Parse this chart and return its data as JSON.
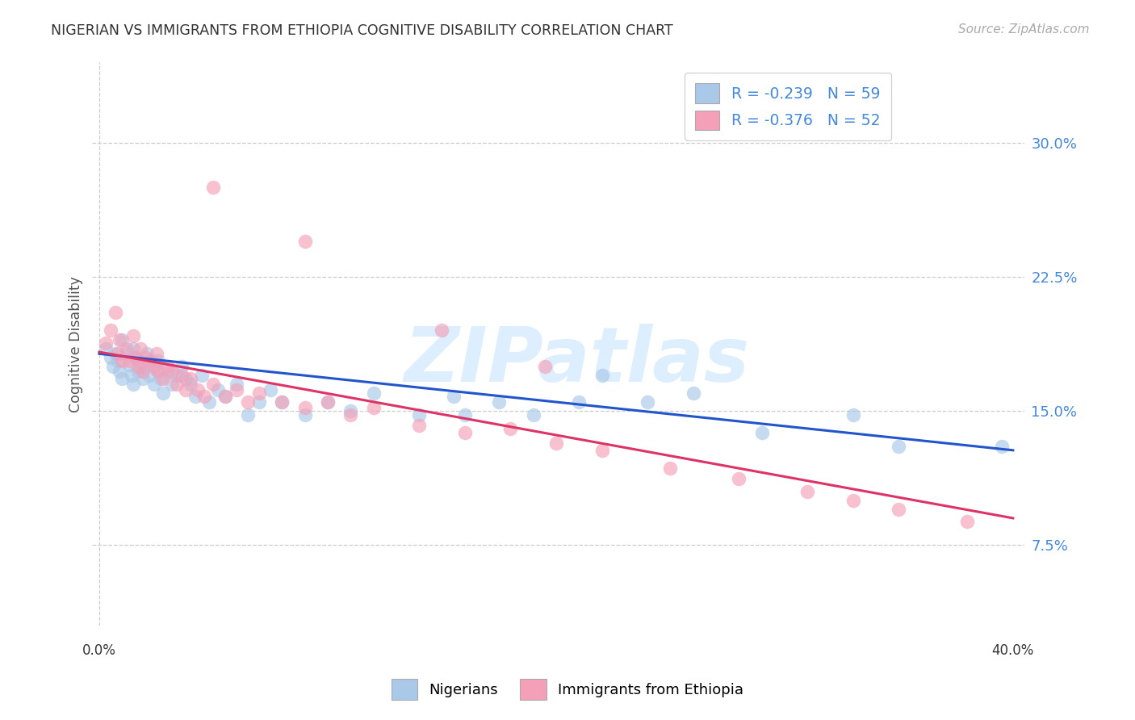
{
  "title": "NIGERIAN VS IMMIGRANTS FROM ETHIOPIA COGNITIVE DISABILITY CORRELATION CHART",
  "source": "Source: ZipAtlas.com",
  "ylabel": "Cognitive Disability",
  "ytick_vals": [
    0.075,
    0.15,
    0.225,
    0.3
  ],
  "ytick_labels": [
    "7.5%",
    "15.0%",
    "22.5%",
    "30.0%"
  ],
  "xlim": [
    -0.003,
    0.405
  ],
  "ylim": [
    0.03,
    0.345
  ],
  "blue_scatter_color": "#aac8e8",
  "pink_scatter_color": "#f4a0b8",
  "blue_line_color": "#2255cc",
  "pink_line_color": "#dd3366",
  "legend_label1": "Nigerians",
  "legend_label2": "Immigrants from Ethiopia",
  "r_nig": -0.239,
  "n_nig": 59,
  "r_eth": -0.376,
  "n_eth": 52,
  "grid_color": "#cccccc",
  "title_fontsize": 12.5,
  "tick_fontsize": 13,
  "blue_trendline_start_y": 0.182,
  "blue_trendline_end_y": 0.128,
  "pink_trendline_start_y": 0.183,
  "pink_trendline_end_y": 0.09,
  "watermark_text": "ZIPatlas",
  "nigerian_x": [
    0.003,
    0.005,
    0.006,
    0.007,
    0.008,
    0.009,
    0.01,
    0.01,
    0.012,
    0.013,
    0.014,
    0.015,
    0.015,
    0.016,
    0.017,
    0.018,
    0.019,
    0.02,
    0.021,
    0.022,
    0.023,
    0.024,
    0.025,
    0.026,
    0.027,
    0.028,
    0.03,
    0.032,
    0.034,
    0.036,
    0.038,
    0.04,
    0.042,
    0.045,
    0.048,
    0.052,
    0.055,
    0.06,
    0.065,
    0.07,
    0.075,
    0.08,
    0.09,
    0.1,
    0.11,
    0.12,
    0.14,
    0.155,
    0.16,
    0.175,
    0.19,
    0.21,
    0.22,
    0.24,
    0.26,
    0.29,
    0.33,
    0.35,
    0.395
  ],
  "nigerian_y": [
    0.185,
    0.18,
    0.175,
    0.182,
    0.178,
    0.172,
    0.19,
    0.168,
    0.183,
    0.176,
    0.17,
    0.185,
    0.165,
    0.18,
    0.172,
    0.175,
    0.168,
    0.175,
    0.182,
    0.17,
    0.178,
    0.165,
    0.173,
    0.178,
    0.168,
    0.16,
    0.172,
    0.165,
    0.17,
    0.175,
    0.168,
    0.165,
    0.158,
    0.17,
    0.155,
    0.162,
    0.158,
    0.165,
    0.148,
    0.155,
    0.162,
    0.155,
    0.148,
    0.155,
    0.15,
    0.16,
    0.148,
    0.158,
    0.148,
    0.155,
    0.148,
    0.155,
    0.17,
    0.155,
    0.16,
    0.138,
    0.148,
    0.13,
    0.13
  ],
  "ethiopian_x": [
    0.003,
    0.005,
    0.007,
    0.008,
    0.009,
    0.01,
    0.012,
    0.013,
    0.015,
    0.016,
    0.017,
    0.018,
    0.019,
    0.02,
    0.022,
    0.024,
    0.025,
    0.026,
    0.028,
    0.03,
    0.032,
    0.034,
    0.036,
    0.038,
    0.04,
    0.043,
    0.046,
    0.05,
    0.055,
    0.06,
    0.065,
    0.07,
    0.08,
    0.09,
    0.1,
    0.11,
    0.12,
    0.14,
    0.16,
    0.18,
    0.2,
    0.22,
    0.25,
    0.28,
    0.31,
    0.33,
    0.35,
    0.38,
    0.05,
    0.09,
    0.15,
    0.195
  ],
  "ethiopian_y": [
    0.188,
    0.195,
    0.205,
    0.182,
    0.19,
    0.178,
    0.185,
    0.178,
    0.192,
    0.18,
    0.175,
    0.185,
    0.172,
    0.18,
    0.178,
    0.175,
    0.182,
    0.172,
    0.168,
    0.175,
    0.172,
    0.165,
    0.17,
    0.162,
    0.168,
    0.162,
    0.158,
    0.165,
    0.158,
    0.162,
    0.155,
    0.16,
    0.155,
    0.152,
    0.155,
    0.148,
    0.152,
    0.142,
    0.138,
    0.14,
    0.132,
    0.128,
    0.118,
    0.112,
    0.105,
    0.1,
    0.095,
    0.088,
    0.275,
    0.245,
    0.195,
    0.175
  ]
}
